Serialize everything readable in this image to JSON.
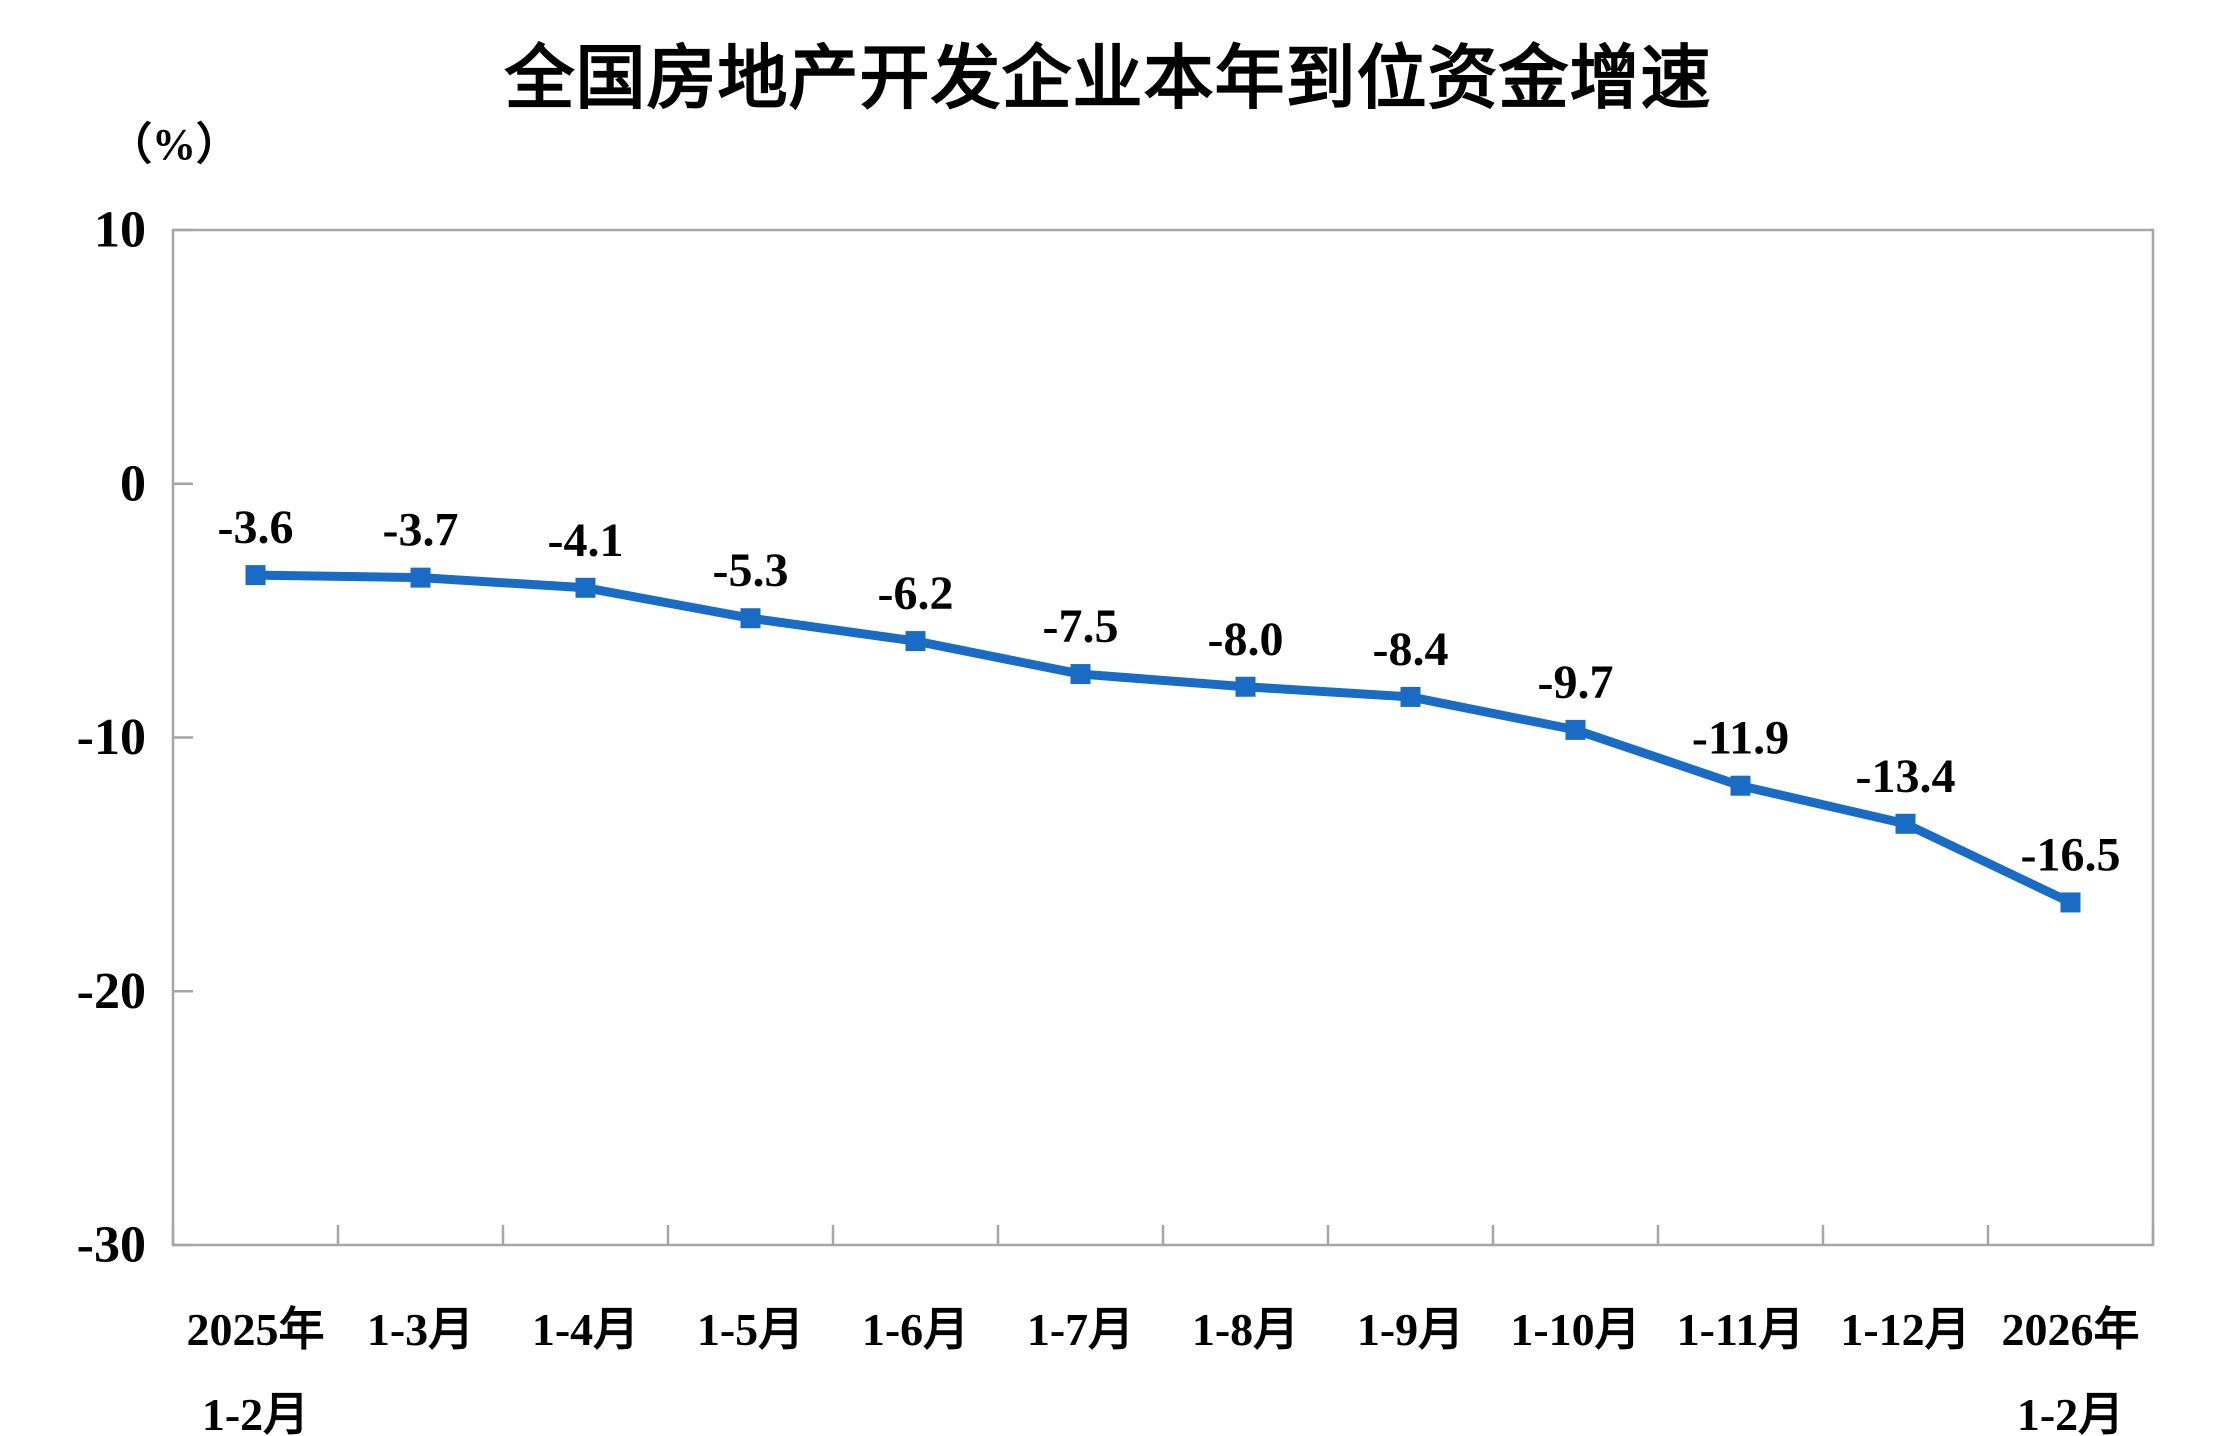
{
  "chart": {
    "title": "全国房地产开发企业本年到位资金增速",
    "unit_label": "（%）",
    "colors": {
      "line": "#1A6BC4",
      "axis": "#A6A6A6",
      "text": "#000000"
    }
  },
  "chart_data": {
    "type": "line",
    "title": "全国房地产开发企业本年到位资金增速",
    "xlabel": "",
    "ylabel": "（%）",
    "ylim": [
      -30,
      10
    ],
    "yticks": [
      10,
      0,
      -10,
      -20,
      -30
    ],
    "grid": false,
    "legend": false,
    "marker": "square",
    "categories": [
      [
        "2025年",
        "1-2月"
      ],
      [
        "1-3月"
      ],
      [
        "1-4月"
      ],
      [
        "1-5月"
      ],
      [
        "1-6月"
      ],
      [
        "1-7月"
      ],
      [
        "1-8月"
      ],
      [
        "1-9月"
      ],
      [
        "1-10月"
      ],
      [
        "1-11月"
      ],
      [
        "1-12月"
      ],
      [
        "2026年",
        "1-2月"
      ]
    ],
    "values": [
      -3.6,
      -3.7,
      -4.1,
      -5.3,
      -6.2,
      -7.5,
      -8.0,
      -8.4,
      -9.7,
      -11.9,
      -13.4,
      -16.5
    ],
    "data_labels": [
      "-3.6",
      "-3.7",
      "-4.1",
      "-5.3",
      "-6.2",
      "-7.5",
      "-8.0",
      "-8.4",
      "-9.7",
      "-11.9",
      "-13.4",
      "-16.5"
    ]
  }
}
